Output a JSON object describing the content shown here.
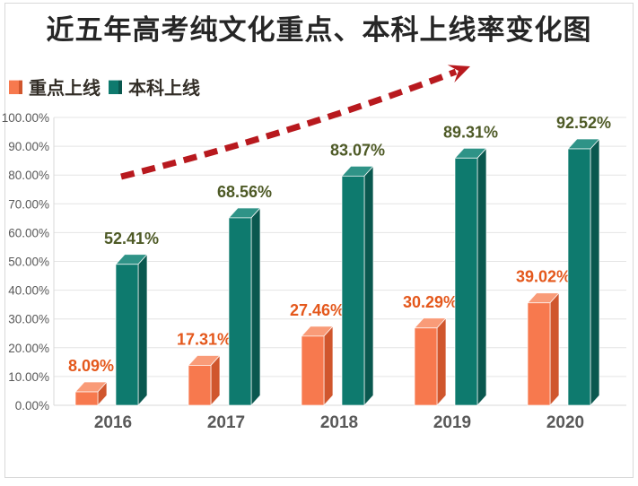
{
  "title": "近五年高考纯文化重点、本科上线率变化图",
  "legend": [
    {
      "label": "重点上线",
      "color": "#F7794E",
      "side": "#D0562D"
    },
    {
      "label": "本科上线",
      "color": "#0E7A6E",
      "side": "#0A584F"
    }
  ],
  "chart_data": {
    "type": "bar",
    "subtype": "3d-clustered-column",
    "categories": [
      "2016",
      "2017",
      "2018",
      "2019",
      "2020"
    ],
    "series": [
      {
        "name": "重点上线",
        "values": [
          8.09,
          17.31,
          27.46,
          30.29,
          39.02
        ],
        "labels": [
          "8.09%",
          "17.31%",
          "27.46%",
          "30.29%",
          "39.02%"
        ]
      },
      {
        "name": "本科上线",
        "values": [
          52.41,
          68.56,
          83.07,
          89.31,
          92.52
        ],
        "labels": [
          "52.41%",
          "68.56%",
          "83.07%",
          "89.31%",
          "92.52%"
        ]
      }
    ],
    "y_ticks": [
      "0.00%",
      "10.00%",
      "20.00%",
      "30.00%",
      "40.00%",
      "50.00%",
      "60.00%",
      "70.00%",
      "80.00%",
      "90.00%",
      "100.00%"
    ],
    "ylim": [
      0,
      100
    ],
    "xlabel": "",
    "ylabel": "",
    "grid": true,
    "legend_position": "top-left",
    "annotation": "red dashed upward trend arrow across upper plot area"
  },
  "colors": {
    "series": [
      {
        "front": "#F7794E",
        "side": "#D0562D",
        "top": "#F99B78",
        "label": "#E4581C"
      },
      {
        "front": "#0E7A6E",
        "side": "#0A584F",
        "top": "#2F9387",
        "label": "#4E5A26"
      }
    ],
    "grid": "#E4E4E4",
    "axis": "#D9D9D9",
    "tick_text": "#595959",
    "title_text": "#262626",
    "arrow": "#B8191E",
    "border": "#D8D8D8"
  }
}
